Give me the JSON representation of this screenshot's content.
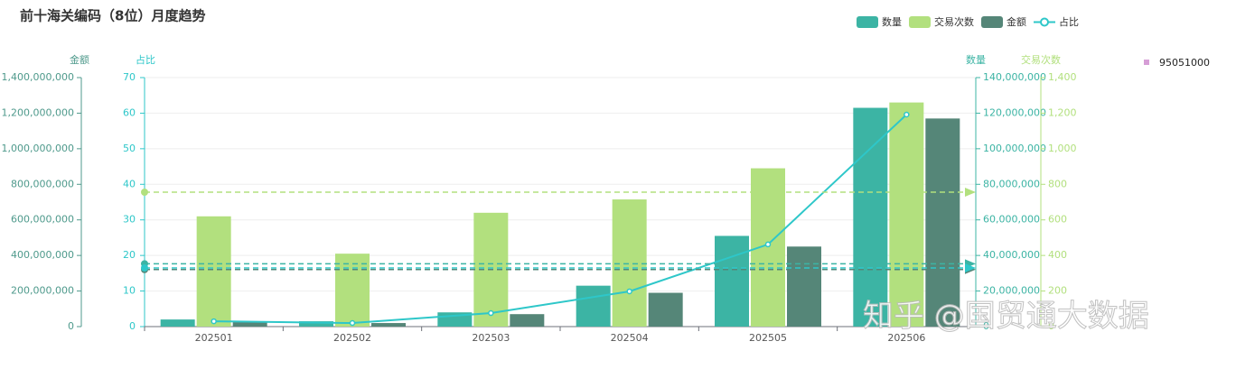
{
  "chart_data": {
    "type": "bar",
    "title": "前十海关编码（8位）月度趋势",
    "watermark": "知乎 @国贸通大数据",
    "filter_legend": {
      "label": "95051000",
      "color": "#d69ed6"
    },
    "categories": [
      "202501",
      "202502",
      "202503",
      "202504",
      "202505",
      "202506"
    ],
    "y_axes": [
      {
        "name": "金额",
        "color": "#4f9a8c",
        "lim": [
          0,
          1400000000
        ],
        "ticks": [
          0,
          {
            "value": 200000000,
            "label": "200,000,000"
          },
          {
            "value": 400000000,
            "label": "400,000,000"
          },
          {
            "value": 600000000,
            "label": "600,000,000"
          },
          {
            "value": 800000000,
            "label": "800,000,000"
          },
          {
            "value": 1000000000,
            "label": "1,000,000,000"
          },
          {
            "value": 1200000000,
            "label": "1,200,000,000"
          },
          {
            "value": 1400000000,
            "label": "1,400,000,000"
          }
        ]
      },
      {
        "name": "占比",
        "color": "#2ec7c9",
        "lim": [
          0,
          70
        ],
        "ticks": [
          0,
          10,
          20,
          30,
          40,
          50,
          60,
          70
        ]
      },
      {
        "name": "数量",
        "color": "#3cb4a4",
        "lim": [
          0,
          140000000
        ],
        "ticks": [
          0,
          {
            "value": 20000000,
            "label": "20,000,000"
          },
          {
            "value": 40000000,
            "label": "40,000,000"
          },
          {
            "value": 60000000,
            "label": "60,000,000"
          },
          {
            "value": 80000000,
            "label": "80,000,000"
          },
          {
            "value": 100000000,
            "label": "100,000,000"
          },
          {
            "value": 120000000,
            "label": "120,000,000"
          },
          {
            "value": 140000000,
            "label": "140,000,000"
          }
        ]
      },
      {
        "name": "交易次数",
        "color": "#b2e07e",
        "lim": [
          0,
          1400
        ],
        "ticks": [
          0,
          200,
          400,
          600,
          800,
          {
            "value": 1000,
            "label": "1,000"
          },
          {
            "value": 1200,
            "label": "1,200"
          },
          {
            "value": 1400,
            "label": "1,400"
          }
        ]
      }
    ],
    "grid": true,
    "series": [
      {
        "name": "数量",
        "type": "bar",
        "axis": 2,
        "color": "#3cb4a4",
        "values": [
          4000000,
          3000000,
          8000000,
          23000000,
          51000000,
          123000000
        ]
      },
      {
        "name": "交易次数",
        "type": "bar",
        "axis": 3,
        "color": "#b2e07e",
        "values": [
          620,
          410,
          640,
          715,
          890,
          1260
        ]
      },
      {
        "name": "金额",
        "type": "bar",
        "axis": 0,
        "color": "#558678",
        "values": [
          25000000,
          20000000,
          70000000,
          190000000,
          450000000,
          1170000000
        ]
      },
      {
        "name": "占比",
        "type": "line",
        "axis": 1,
        "color": "#2ec7c9",
        "values": [
          1.5,
          1.0,
          3.8,
          9.9,
          23.1,
          59.6
        ]
      }
    ]
  }
}
